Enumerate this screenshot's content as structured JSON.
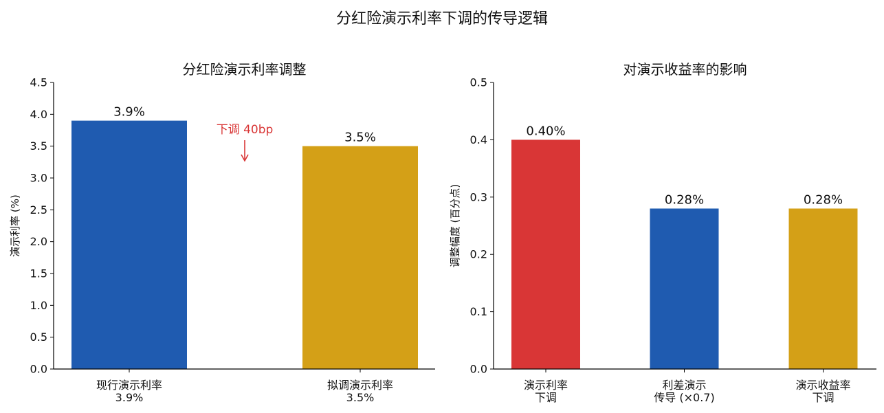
{
  "suptitle": "分红险演示利率下调的传导逻辑",
  "chart_data": [
    {
      "type": "bar",
      "title": "分红险演示利率调整",
      "ylabel": "演示利率 (%)",
      "xlabel": "",
      "ylim": [
        0,
        4.5
      ],
      "yticks": [
        0.0,
        0.5,
        1.0,
        1.5,
        2.0,
        2.5,
        3.0,
        3.5,
        4.0,
        4.5
      ],
      "ytick_labels": [
        "0.0",
        "0.5",
        "1.0",
        "1.5",
        "2.0",
        "2.5",
        "3.0",
        "3.5",
        "4.0",
        "4.5"
      ],
      "categories": [
        [
          "现行演示利率",
          "3.9%"
        ],
        [
          "拟调演示利率",
          "3.5%"
        ]
      ],
      "values": [
        3.9,
        3.5
      ],
      "data_labels": [
        "3.9%",
        "3.5%"
      ],
      "colors": [
        "#1f5bb0",
        "#d4a017"
      ],
      "annotation": {
        "text": "下调 40bp",
        "color": "#d93636",
        "arrow": "down"
      },
      "grid": false
    },
    {
      "type": "bar",
      "title": "对演示收益率的影响",
      "ylabel": "调整幅度 (百分点)",
      "xlabel": "",
      "ylim": [
        0,
        0.5
      ],
      "yticks": [
        0.0,
        0.1,
        0.2,
        0.3,
        0.4,
        0.5
      ],
      "ytick_labels": [
        "0.0",
        "0.1",
        "0.2",
        "0.3",
        "0.4",
        "0.5"
      ],
      "categories": [
        [
          "演示利率",
          "下调"
        ],
        [
          "利差演示",
          "传导 (×0.7)"
        ],
        [
          "演示收益率",
          "下调"
        ]
      ],
      "values": [
        0.4,
        0.28,
        0.28
      ],
      "data_labels": [
        "0.40%",
        "0.28%",
        "0.28%"
      ],
      "colors": [
        "#d93636",
        "#1f5bb0",
        "#d4a017"
      ],
      "grid": false
    }
  ]
}
